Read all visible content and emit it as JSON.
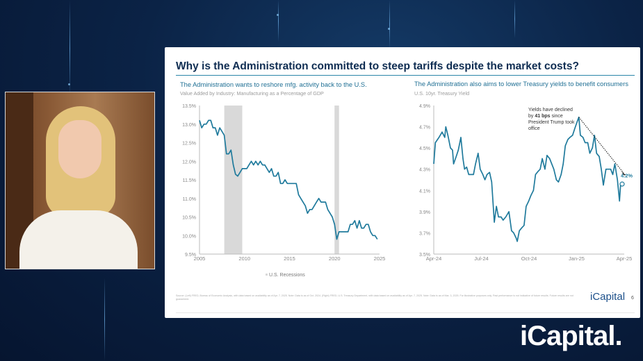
{
  "slide": {
    "title": "Why is the Administration committed to steep tariffs despite the market costs?",
    "footnote": "Source: (Left) FRED, Bureau of Economic Analysis, with data based on availability as of Apr. 7, 2025. Note: Data is as of Oct. 2024. (Right) FRED, U.S. Treasury Department, with data based on availability as of Apr. 7, 2025. Note: Data is as of Mar. 3, 2025. For illustrative purposes only. Past performance is not indicative of future results. Future results are not guaranteed.",
    "logo": "iCapital",
    "page_number": "6"
  },
  "brand_logo": "iCapital.",
  "colors": {
    "line": "#1f7a9c",
    "recession": "#d9d9d9",
    "title": "#0f2d52",
    "background": "#0b2346"
  },
  "chart_data": [
    {
      "type": "line",
      "title": "The Administration wants to reshore mfg. activity back to the U.S.",
      "subtitle": "Value Added by Industry: Manufacturing as a Percentage of GDP",
      "xlim": [
        2005,
        2025
      ],
      "ylim": [
        9.5,
        13.5
      ],
      "x_ticks": [
        "2005",
        "2010",
        "2015",
        "2020",
        "2025"
      ],
      "y_ticks": [
        "9.5%",
        "10.0%",
        "10.5%",
        "11.0%",
        "11.5%",
        "12.0%",
        "12.5%",
        "13.0%",
        "13.5%"
      ],
      "legend": "U.S. Recessions",
      "legend_position": "bottom",
      "grid": false,
      "recessions": [
        [
          2007.75,
          2009.75
        ],
        [
          2020.0,
          2020.5
        ]
      ],
      "x": [
        2005,
        2005.25,
        2005.5,
        2005.75,
        2006,
        2006.25,
        2006.5,
        2006.75,
        2007,
        2007.25,
        2007.5,
        2007.75,
        2008,
        2008.25,
        2008.5,
        2008.75,
        2009,
        2009.25,
        2009.5,
        2009.75,
        2010,
        2010.25,
        2010.5,
        2010.75,
        2011,
        2011.25,
        2011.5,
        2011.75,
        2012,
        2012.25,
        2012.5,
        2012.75,
        2013,
        2013.25,
        2013.5,
        2013.75,
        2014,
        2014.25,
        2014.5,
        2014.75,
        2015,
        2015.25,
        2015.5,
        2015.75,
        2016,
        2016.25,
        2016.5,
        2016.75,
        2017,
        2017.25,
        2017.5,
        2017.75,
        2018,
        2018.25,
        2018.5,
        2018.75,
        2019,
        2019.25,
        2019.5,
        2019.75,
        2020,
        2020.25,
        2020.5,
        2020.75,
        2021,
        2021.25,
        2021.5,
        2021.75,
        2022,
        2022.25,
        2022.5,
        2022.75,
        2023,
        2023.25,
        2023.5,
        2023.75,
        2024,
        2024.25,
        2024.5,
        2024.75
      ],
      "y": [
        13.1,
        12.9,
        13.0,
        13.0,
        13.1,
        13.1,
        12.9,
        12.9,
        12.7,
        12.9,
        12.8,
        12.7,
        12.2,
        12.2,
        12.3,
        11.9,
        11.65,
        11.6,
        11.7,
        11.8,
        11.8,
        11.8,
        11.9,
        12.0,
        11.9,
        12.0,
        11.9,
        12.0,
        11.9,
        11.9,
        11.8,
        11.7,
        11.8,
        11.6,
        11.6,
        11.7,
        11.4,
        11.4,
        11.5,
        11.4,
        11.4,
        11.4,
        11.4,
        11.4,
        11.1,
        11.0,
        10.9,
        10.8,
        10.6,
        10.7,
        10.7,
        10.8,
        10.9,
        11.0,
        10.9,
        10.9,
        10.9,
        10.7,
        10.6,
        10.5,
        10.3,
        9.9,
        10.1,
        10.1,
        10.1,
        10.1,
        10.1,
        10.3,
        10.3,
        10.4,
        10.2,
        10.4,
        10.2,
        10.2,
        10.3,
        10.3,
        10.1,
        10.0,
        10.0,
        9.9
      ]
    },
    {
      "type": "line",
      "title": "The Administration also aims to lower Treasury yields to benefit consumers",
      "subtitle": "U.S. 10yr. Treasury Yield",
      "xlim": [
        "2024-04-01",
        "2025-04-01"
      ],
      "ylim": [
        3.5,
        4.9
      ],
      "x_ticks": [
        "Apr-24",
        "Jul-24",
        "Oct-24",
        "Jan-25",
        "Apr-25"
      ],
      "y_ticks": [
        "3.5%",
        "3.7%",
        "3.9%",
        "4.1%",
        "4.3%",
        "4.5%",
        "4.7%",
        "4.9%"
      ],
      "grid": false,
      "annotation": {
        "line1": "Yields have declined",
        "line2_pre": "by ",
        "line2_bold": "41 bps",
        "line2_post": " since",
        "line3": "President Trump took",
        "line4": "office"
      },
      "end_label": "4.2%",
      "x": [
        "2024-04-01",
        "2024-04-04",
        "2024-04-11",
        "2024-04-17",
        "2024-04-22",
        "2024-04-24",
        "2024-04-28",
        "2024-05-03",
        "2024-05-07",
        "2024-05-09",
        "2024-05-14",
        "2024-05-18",
        "2024-05-23",
        "2024-05-27",
        "2024-05-30",
        "2024-06-03",
        "2024-06-07",
        "2024-06-12",
        "2024-06-16",
        "2024-06-20",
        "2024-06-25",
        "2024-06-29",
        "2024-07-04",
        "2024-07-08",
        "2024-07-12",
        "2024-07-17",
        "2024-07-21",
        "2024-07-26",
        "2024-07-30",
        "2024-08-03",
        "2024-08-08",
        "2024-08-12",
        "2024-08-17",
        "2024-08-23",
        "2024-08-28",
        "2024-09-01",
        "2024-09-06",
        "2024-09-08",
        "2024-09-12",
        "2024-09-17",
        "2024-09-21",
        "2024-09-25",
        "2024-09-30",
        "2024-10-04",
        "2024-10-09",
        "2024-10-13",
        "2024-10-18",
        "2024-10-22",
        "2024-10-26",
        "2024-10-31",
        "2024-11-04",
        "2024-11-09",
        "2024-11-13",
        "2024-11-17",
        "2024-11-22",
        "2024-11-26",
        "2024-12-01",
        "2024-12-05",
        "2024-12-09",
        "2024-12-14",
        "2024-12-18",
        "2024-12-23",
        "2024-12-27",
        "2025-01-01",
        "2025-01-04",
        "2025-01-07",
        "2025-01-12",
        "2025-01-16",
        "2025-01-21",
        "2025-01-25",
        "2025-01-30",
        "2025-02-03",
        "2025-02-07",
        "2025-02-12",
        "2025-02-16",
        "2025-02-20",
        "2025-02-25",
        "2025-03-01",
        "2025-03-06",
        "2025-03-10",
        "2025-03-14",
        "2025-03-19",
        "2025-03-23",
        "2025-03-25",
        "2025-03-28"
      ],
      "y": [
        4.35,
        4.55,
        4.6,
        4.65,
        4.6,
        4.7,
        4.62,
        4.5,
        4.48,
        4.35,
        4.42,
        4.48,
        4.6,
        4.4,
        4.3,
        4.32,
        4.25,
        4.25,
        4.25,
        4.35,
        4.45,
        4.3,
        4.25,
        4.2,
        4.25,
        4.27,
        4.18,
        3.8,
        3.95,
        3.85,
        3.85,
        3.82,
        3.85,
        3.9,
        3.72,
        3.7,
        3.65,
        3.62,
        3.72,
        3.75,
        3.77,
        3.95,
        4.0,
        4.05,
        4.1,
        4.25,
        4.28,
        4.3,
        4.4,
        4.3,
        4.43,
        4.4,
        4.35,
        4.3,
        4.2,
        4.18,
        4.25,
        4.35,
        4.52,
        4.58,
        4.6,
        4.62,
        4.68,
        4.75,
        4.79,
        4.62,
        4.6,
        4.55,
        4.55,
        4.45,
        4.5,
        4.62,
        4.45,
        4.42,
        4.3,
        4.15,
        4.3,
        4.3,
        4.3,
        4.25,
        4.35,
        4.2,
        4.0,
        4.15,
        4.16
      ]
    }
  ]
}
